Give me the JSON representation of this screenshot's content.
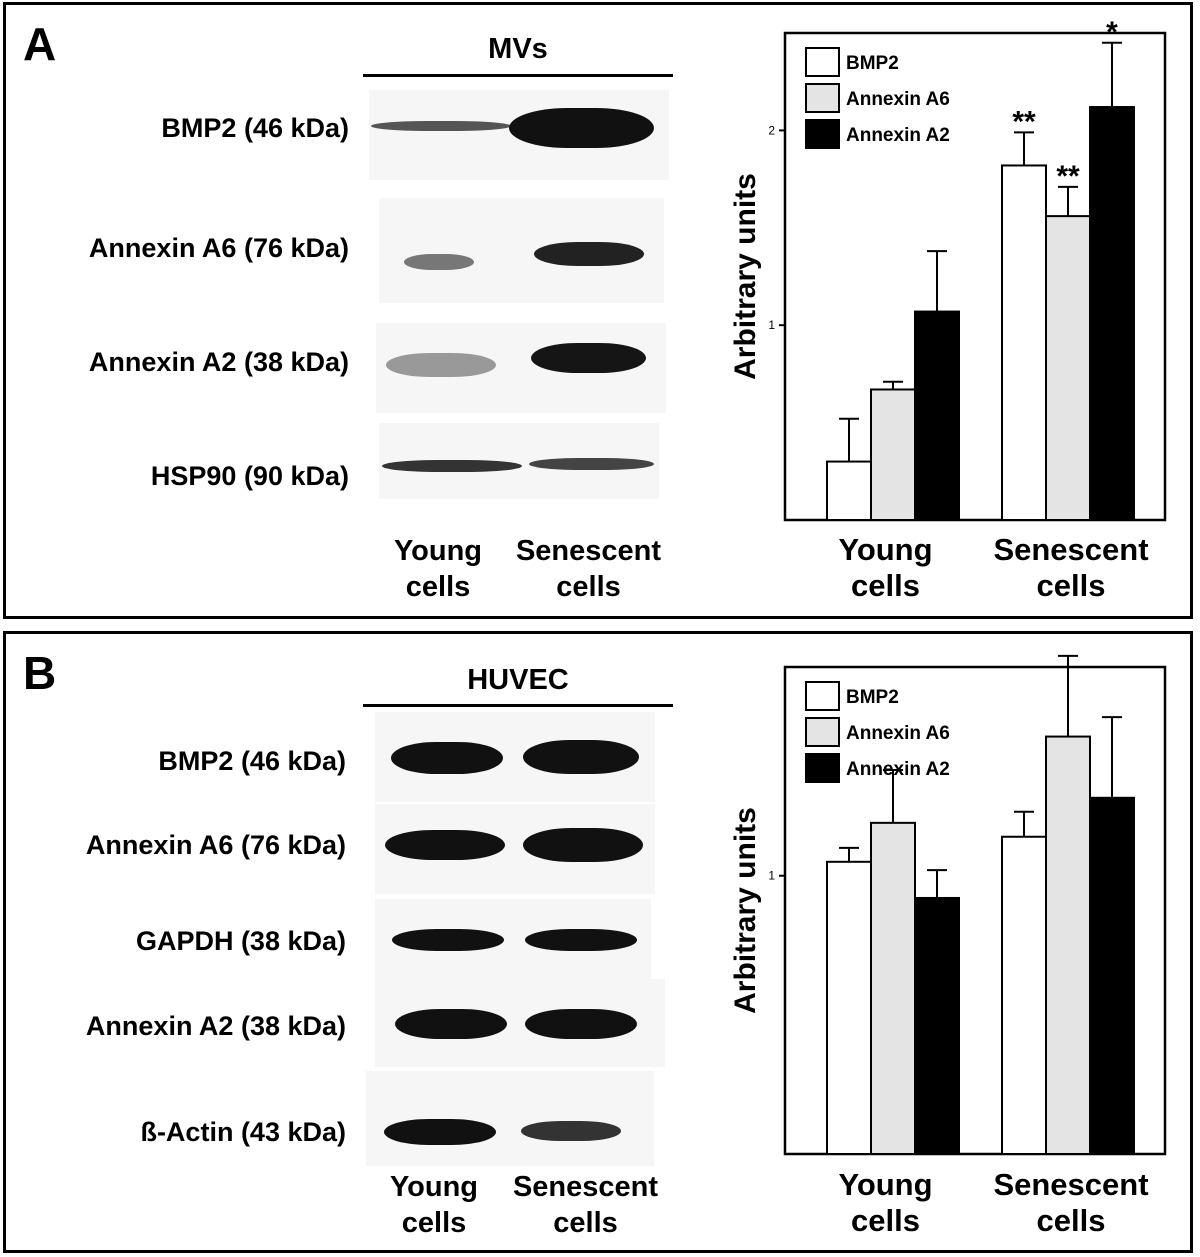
{
  "panelA": {
    "letter": "A",
    "blot_title": "MVs",
    "bands": [
      "BMP2 (46 kDa)",
      "Annexin A6 (76 kDa)",
      "Annexin A2 (38 kDa)",
      "HSP90 (90 kDa)"
    ],
    "lanes": [
      {
        "line1": "Young",
        "line2": "cells"
      },
      {
        "line1": "Senescent",
        "line2": "cells"
      }
    ]
  },
  "panelB": {
    "letter": "B",
    "blot_title": "HUVEC",
    "bands": [
      "BMP2 (46 kDa)",
      "Annexin A6 (76 kDa)",
      "GAPDH (38 kDa)",
      "Annexin A2 (38 kDa)",
      "ß-Actin (43 kDa)"
    ],
    "lanes": [
      {
        "line1": "Young",
        "line2": "cells"
      },
      {
        "line1": "Senescent",
        "line2": "cells"
      }
    ]
  },
  "chart_data": [
    {
      "type": "bar",
      "ylabel": "Arbitrary units",
      "yticks": [
        1,
        2
      ],
      "ylim": [
        0,
        2.5
      ],
      "legend_position": "top-left",
      "categories": [
        {
          "line1": "Young",
          "line2": "cells"
        },
        {
          "line1": "Senescent",
          "line2": "cells"
        }
      ],
      "series": [
        {
          "name": "BMP2",
          "color": "#ffffff",
          "values": [
            0.3,
            1.82
          ],
          "errors": [
            0.22,
            0.17
          ],
          "significance": [
            "",
            "**"
          ]
        },
        {
          "name": "Annexin A6",
          "color": "#e4e4e4",
          "values": [
            0.67,
            1.56
          ],
          "errors": [
            0.04,
            0.15
          ],
          "significance": [
            "",
            "**"
          ]
        },
        {
          "name": "Annexin A2",
          "color": "#000000",
          "values": [
            1.07,
            2.12
          ],
          "errors": [
            0.31,
            0.33
          ],
          "significance": [
            "",
            "*"
          ]
        }
      ]
    },
    {
      "type": "bar",
      "ylabel": "Arbitrary units",
      "yticks": [
        1
      ],
      "ylim": [
        0,
        1.75
      ],
      "legend_position": "top-left",
      "categories": [
        {
          "line1": "Young",
          "line2": "cells"
        },
        {
          "line1": "Senescent",
          "line2": "cells"
        }
      ],
      "series": [
        {
          "name": "BMP2",
          "color": "#ffffff",
          "values": [
            1.05,
            1.14
          ],
          "errors": [
            0.05,
            0.09
          ],
          "significance": [
            "",
            ""
          ]
        },
        {
          "name": "Annexin A6",
          "color": "#e4e4e4",
          "values": [
            1.19,
            1.5
          ],
          "errors": [
            0.19,
            0.29
          ],
          "significance": [
            "",
            ""
          ]
        },
        {
          "name": "Annexin A2",
          "color": "#000000",
          "values": [
            0.92,
            1.28
          ],
          "errors": [
            0.1,
            0.29
          ],
          "significance": [
            "",
            ""
          ]
        }
      ]
    }
  ]
}
